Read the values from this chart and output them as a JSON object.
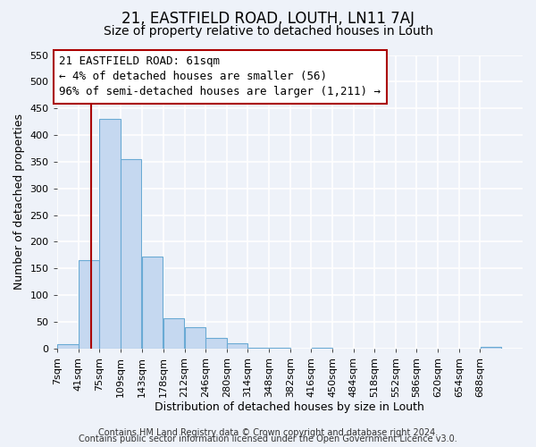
{
  "title": "21, EASTFIELD ROAD, LOUTH, LN11 7AJ",
  "subtitle": "Size of property relative to detached houses in Louth",
  "xlabel": "Distribution of detached houses by size in Louth",
  "ylabel": "Number of detached properties",
  "bar_labels": [
    "7sqm",
    "41sqm",
    "75sqm",
    "109sqm",
    "143sqm",
    "178sqm",
    "212sqm",
    "246sqm",
    "280sqm",
    "314sqm",
    "348sqm",
    "382sqm",
    "416sqm",
    "450sqm",
    "484sqm",
    "518sqm",
    "552sqm",
    "586sqm",
    "620sqm",
    "654sqm",
    "688sqm"
  ],
  "bar_values": [
    8,
    165,
    430,
    355,
    172,
    57,
    40,
    20,
    10,
    2,
    1,
    0,
    1,
    0,
    0,
    0,
    0,
    0,
    0,
    0,
    3
  ],
  "bin_edges": [
    7,
    41,
    75,
    109,
    143,
    178,
    212,
    246,
    280,
    314,
    348,
    382,
    416,
    450,
    484,
    518,
    552,
    586,
    620,
    654,
    688,
    722
  ],
  "ylim": [
    0,
    550
  ],
  "bar_color": "#c5d8f0",
  "bar_edge_color": "#6aaad4",
  "vline_x": 61,
  "vline_color": "#aa0000",
  "ann_line1": "21 EASTFIELD ROAD: 61sqm",
  "ann_line2": "← 4% of detached houses are smaller (56)",
  "ann_line3": "96% of semi-detached houses are larger (1,211) →",
  "footer_line1": "Contains HM Land Registry data © Crown copyright and database right 2024.",
  "footer_line2": "Contains public sector information licensed under the Open Government Licence v3.0.",
  "bg_color": "#eef2f9",
  "grid_color": "#ffffff",
  "title_fontsize": 12,
  "subtitle_fontsize": 10,
  "axis_label_fontsize": 9,
  "tick_fontsize": 8,
  "footer_fontsize": 7,
  "ann_fontsize": 9
}
